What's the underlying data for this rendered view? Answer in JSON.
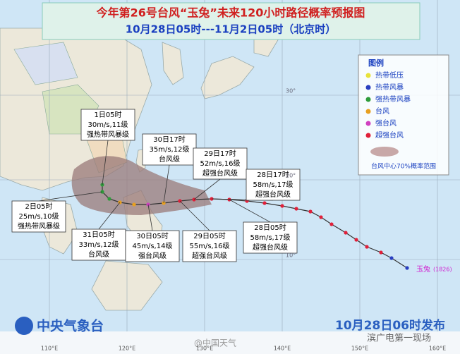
{
  "header": {
    "title": "今年第26号台风“玉兔”未来120小时路径概率预报图",
    "subtitle": "10月28日05时---11月2日05时（北京时）"
  },
  "legend": {
    "title": "图例",
    "items": [
      {
        "label": "热带低压",
        "color": "#e8e23a"
      },
      {
        "label": "热带风暴",
        "color": "#2a3fc0"
      },
      {
        "label": "强热带风暴",
        "color": "#2e9c3a"
      },
      {
        "label": "台风",
        "color": "#e8a020"
      },
      {
        "label": "强台风",
        "color": "#d040c0"
      },
      {
        "label": "超强台风",
        "color": "#e0203a"
      }
    ],
    "cone_label": "台风中心70%概率范围"
  },
  "callouts": [
    {
      "lines": [
        "1日05时",
        "30m/s,11级",
        "强热带风暴级"
      ]
    },
    {
      "lines": [
        "30日17时",
        "35m/s,12级",
        "台风级"
      ]
    },
    {
      "lines": [
        "29日17时",
        "52m/s,16级",
        "超强台风级"
      ]
    },
    {
      "lines": [
        "28日17时",
        "58m/s,17级",
        "超强台风级"
      ]
    },
    {
      "lines": [
        "2日05时",
        "25m/s,10级",
        "强热带风暴级"
      ]
    },
    {
      "lines": [
        "31日05时",
        "33m/s,12级",
        "台风级"
      ]
    },
    {
      "lines": [
        "30日05时",
        "45m/s,14级",
        "强台风级"
      ]
    },
    {
      "lines": [
        "29日05时",
        "55m/s,16级",
        "超强台风级"
      ]
    },
    {
      "lines": [
        "28日05时",
        "58m/s,17级",
        "超强台风级"
      ]
    }
  ],
  "storm": {
    "name": "玉兔",
    "id": "(1826)"
  },
  "footer": {
    "agency": "中央气象台",
    "issued": "10月28日06时发布"
  },
  "lon_labels": [
    "110°E",
    "120°E",
    "130°E",
    "140°E",
    "150°E",
    "160°E"
  ],
  "lat_labels": [
    "30°",
    "20°",
    "10°"
  ],
  "watermarks": [
    "@中国天气",
    "滨广电第一现场"
  ]
}
